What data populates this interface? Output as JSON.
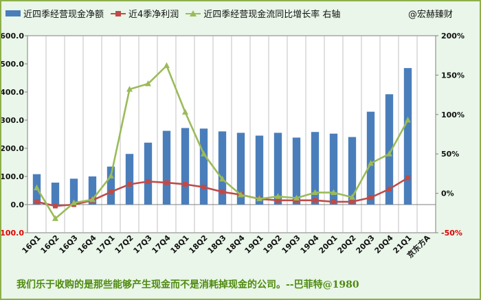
{
  "legend": {
    "bar": "近四季经营现金净额",
    "red": "近4季净利润",
    "green": "近四季经营现金流同比增长率 右轴"
  },
  "watermark": "@宏赫臻财",
  "quote": "我们乐于收购的是那些能够产生现金而不是消耗掉现金的公司。--巴菲特@1980",
  "company_label": "京东方A",
  "colors": {
    "bar": "#4a7ebb",
    "red": "#be4b48",
    "green": "#9bbb59"
  },
  "chart_data": {
    "type": "bar",
    "categories": [
      "16Q1",
      "16Q2",
      "16Q3",
      "16Q4",
      "17Q1",
      "17Q2",
      "17Q3",
      "17Q4",
      "18Q1",
      "18Q2",
      "18Q3",
      "18Q4",
      "19Q1",
      "19Q2",
      "19Q3",
      "19Q4",
      "20Q1",
      "20Q2",
      "20Q3",
      "20Q4",
      "21Q1"
    ],
    "series": [
      {
        "name": "近四季经营现金净额",
        "type": "bar",
        "axis": "left",
        "values": [
          108,
          78,
          92,
          100,
          135,
          180,
          220,
          262,
          272,
          270,
          260,
          255,
          245,
          255,
          238,
          258,
          252,
          240,
          330,
          392,
          485
        ]
      },
      {
        "name": "近4季净利润",
        "type": "line",
        "axis": "left",
        "values": [
          10,
          -5,
          0,
          15,
          45,
          72,
          82,
          78,
          72,
          62,
          45,
          35,
          20,
          15,
          15,
          15,
          10,
          10,
          25,
          55,
          95
        ]
      },
      {
        "name": "近四季经营现金流同比增长率 右轴",
        "type": "line",
        "axis": "right",
        "values": [
          0.07,
          -0.32,
          -0.12,
          -0.08,
          0.22,
          1.32,
          1.39,
          1.62,
          1.03,
          0.5,
          0.18,
          -0.02,
          -0.07,
          -0.04,
          -0.06,
          0.01,
          0.01,
          -0.05,
          0.38,
          0.5,
          0.93
        ]
      }
    ],
    "y_left": {
      "range": [
        -100,
        600
      ],
      "ticks": [
        "-100.0",
        "0.0",
        "100.0",
        "200.0",
        "300.0",
        "400.0",
        "500.0",
        "600.0"
      ]
    },
    "y_right": {
      "range": [
        -0.5,
        2.0
      ],
      "ticks": [
        "-50%",
        "0%",
        "50%",
        "100%",
        "150%",
        "200%"
      ]
    },
    "grid": "vertical",
    "legend_position": "top"
  }
}
